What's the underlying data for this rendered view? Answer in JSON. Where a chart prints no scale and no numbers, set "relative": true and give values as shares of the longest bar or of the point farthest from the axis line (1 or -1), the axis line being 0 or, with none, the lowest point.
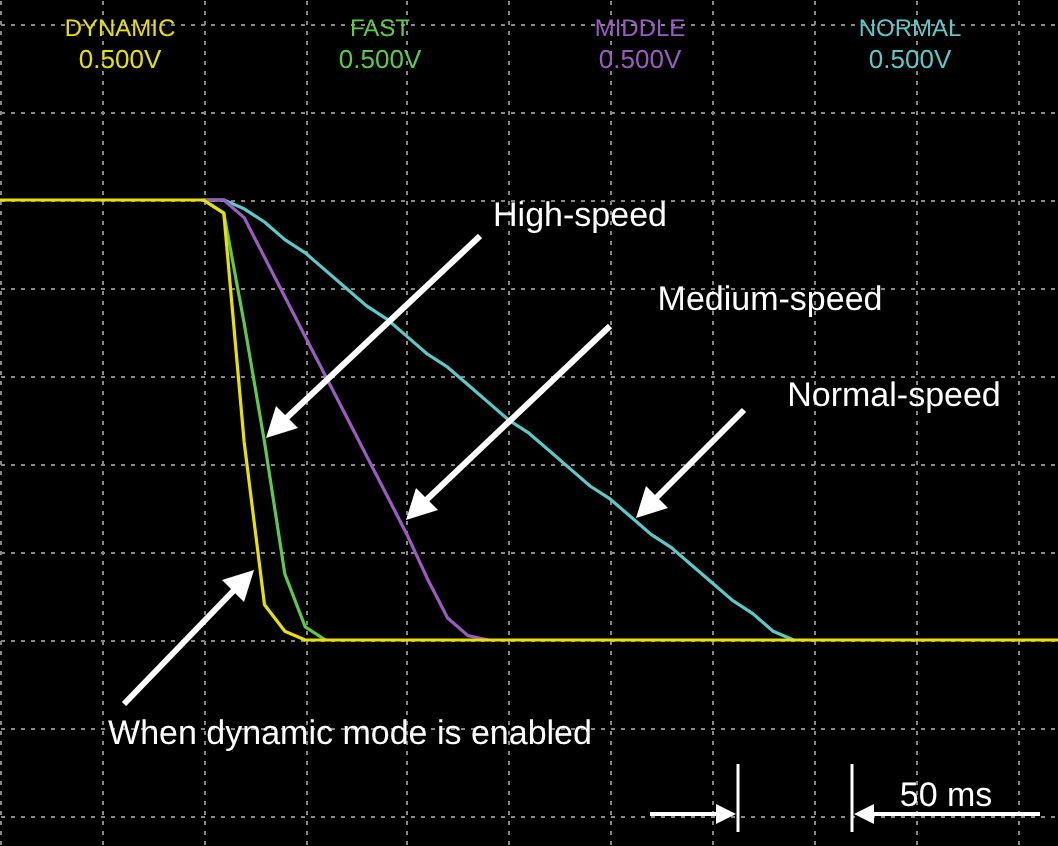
{
  "chart_data": {
    "type": "line",
    "relative": true,
    "grid": true,
    "line_style": "solid",
    "categories": [
      null,
      null,
      null,
      null,
      null,
      null,
      null,
      null,
      null,
      null,
      null,
      null,
      null,
      null,
      null,
      null,
      null,
      null,
      null,
      null,
      null,
      null,
      null,
      null,
      null,
      null,
      null,
      null,
      null,
      null,
      null,
      null,
      null,
      null,
      null,
      null,
      null,
      null,
      null,
      null,
      null,
      null,
      null,
      null,
      null,
      null,
      null,
      null,
      null,
      null,
      null,
      null,
      null
    ],
    "series": [
      {
        "name": "DYNAMIC",
        "color": "#e8e000",
        "values": [
          1,
          1,
          1,
          1,
          1,
          1,
          1,
          1,
          1,
          1,
          1,
          0.97,
          0.45,
          0.08,
          0.02,
          0,
          0,
          0,
          0,
          0,
          0,
          0,
          0,
          0,
          0,
          0,
          0,
          0,
          0,
          0,
          0,
          0,
          0,
          0,
          0,
          0,
          0,
          0,
          0,
          0,
          0,
          0,
          0,
          0,
          0,
          0,
          0,
          0,
          0,
          0,
          0,
          0,
          0
        ]
      },
      {
        "name": "FAST",
        "color": "#5ec94a",
        "values": [
          null,
          null,
          null,
          null,
          null,
          null,
          null,
          null,
          null,
          null,
          1,
          0.97,
          0.72,
          0.45,
          0.15,
          0.03,
          0,
          null,
          null,
          null,
          null,
          null,
          null,
          null,
          null,
          null,
          null,
          null,
          null,
          null,
          null,
          null,
          null,
          null,
          null,
          null,
          null,
          null,
          null,
          null,
          null,
          null,
          null,
          null,
          null,
          null,
          null,
          null,
          null,
          null,
          null,
          null,
          null
        ]
      },
      {
        "name": "MIDDLE",
        "color": "#9a5cc0",
        "values": [
          null,
          null,
          null,
          null,
          null,
          null,
          null,
          null,
          null,
          null,
          1,
          1,
          0.96,
          0.87,
          0.78,
          0.69,
          0.6,
          0.51,
          0.42,
          0.33,
          0.24,
          0.14,
          0.05,
          0.01,
          0,
          null,
          null,
          null,
          null,
          null,
          null,
          null,
          null,
          null,
          null,
          null,
          null,
          null,
          null,
          null,
          null,
          null,
          null,
          null,
          null,
          null,
          null,
          null,
          null,
          null,
          null,
          null,
          null
        ]
      },
      {
        "name": "NORMAL",
        "color": "#5cc8c8",
        "values": [
          null,
          null,
          null,
          null,
          null,
          null,
          null,
          null,
          null,
          null,
          1,
          1,
          0.98,
          0.95,
          0.91,
          0.88,
          0.84,
          0.8,
          0.76,
          0.73,
          0.69,
          0.65,
          0.62,
          0.58,
          0.54,
          0.5,
          0.47,
          0.43,
          0.39,
          0.35,
          0.32,
          0.28,
          0.24,
          0.21,
          0.17,
          0.13,
          0.09,
          0.06,
          0.02,
          0,
          null,
          null,
          null,
          null,
          null,
          null,
          null,
          null,
          null,
          null,
          null,
          null,
          null
        ]
      }
    ],
    "annotations": [
      "0.500V",
      "0.500V",
      "0.500V",
      "0.500V",
      "High-speed",
      "Medium-speed",
      "Normal-speed",
      "When dynamic mode is enabled",
      "50 ms"
    ]
  }
}
